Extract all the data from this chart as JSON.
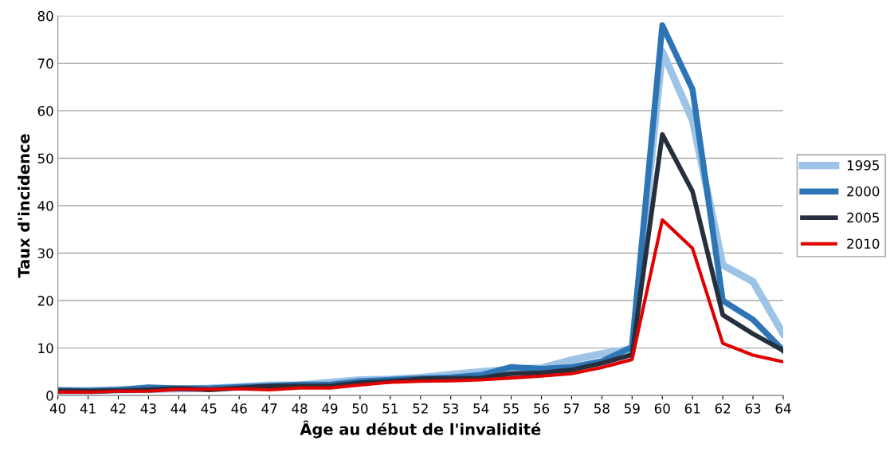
{
  "chart_data": {
    "type": "line",
    "xlabel": "Âge au début de l'invalidité",
    "ylabel": "Taux d'incidence",
    "categories": [
      "40",
      "41",
      "42",
      "43",
      "44",
      "45",
      "46",
      "47",
      "48",
      "49",
      "50",
      "51",
      "52",
      "53",
      "54",
      "55",
      "56",
      "57",
      "58",
      "59",
      "60",
      "61",
      "62",
      "63",
      "64"
    ],
    "series": [
      {
        "name": "1995",
        "color": "#9dc3e6",
        "values": [
          1.0,
          1.0,
          1.2,
          1.3,
          1.4,
          1.5,
          1.8,
          2.2,
          2.2,
          2.8,
          3.3,
          3.4,
          3.8,
          4.4,
          5.0,
          5.5,
          5.8,
          7.5,
          8.8,
          9.8,
          72.5,
          58,
          27.5,
          24,
          13
        ]
      },
      {
        "name": "2000",
        "color": "#2e75b6",
        "values": [
          1.1,
          1.0,
          1.2,
          1.7,
          1.5,
          1.5,
          1.8,
          2.0,
          2.3,
          2.3,
          3.0,
          3.3,
          3.6,
          3.8,
          4.3,
          6.0,
          5.6,
          6.0,
          7.2,
          10.2,
          78,
          64.5,
          20,
          16,
          9.5
        ]
      },
      {
        "name": "2005",
        "color": "#262f3d",
        "values": [
          1.0,
          0.9,
          1.0,
          1.2,
          1.5,
          1.2,
          1.6,
          2.0,
          2.0,
          2.0,
          2.7,
          3.0,
          3.5,
          3.6,
          3.7,
          4.6,
          4.8,
          5.4,
          6.8,
          8.6,
          55,
          43,
          17,
          13,
          9.5
        ]
      },
      {
        "name": "2010",
        "color": "#e00000",
        "values": [
          0.7,
          0.7,
          0.9,
          0.9,
          1.3,
          1.3,
          1.4,
          1.2,
          1.6,
          1.6,
          2.2,
          2.8,
          3.0,
          3.1,
          3.3,
          3.7,
          4.1,
          4.6,
          5.9,
          7.6,
          37,
          31,
          11,
          8.5,
          7.1
        ]
      }
    ],
    "ylim": [
      0,
      80
    ],
    "yticks": [
      0,
      10,
      20,
      30,
      40,
      50,
      60,
      70,
      80
    ],
    "grid": "y",
    "legend": "right",
    "marker": "none",
    "line_style": "solid"
  }
}
